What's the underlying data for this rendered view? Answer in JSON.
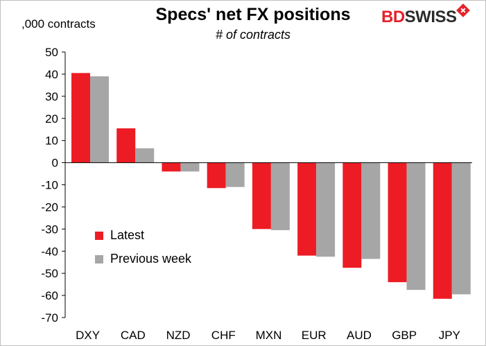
{
  "chart_data": {
    "type": "bar",
    "title": "Specs' net FX positions",
    "subtitle": "# of contracts",
    "ylabel": ",000 contracts",
    "ylim": [
      -70,
      50
    ],
    "yticks": [
      50,
      40,
      30,
      20,
      10,
      0,
      -10,
      -20,
      -30,
      -40,
      -50,
      -60,
      -70
    ],
    "categories": [
      "DXY",
      "CAD",
      "NZD",
      "CHF",
      "MXN",
      "EUR",
      "AUD",
      "GBP",
      "JPY"
    ],
    "series": [
      {
        "name": "Latest",
        "color": "#ed1c24",
        "values": [
          40.5,
          15.5,
          -4,
          -11.5,
          -30,
          -42,
          -47.5,
          -54,
          -61.5
        ]
      },
      {
        "name": "Previous week",
        "color": "#a6a6a6",
        "values": [
          39,
          6.5,
          -4,
          -11,
          -30.5,
          -42.5,
          -43.5,
          -57.5,
          -59.5
        ]
      }
    ],
    "legend_position": "bottom-left",
    "grid": false
  },
  "branding": {
    "logo_part1": "BD",
    "logo_part2": "SWISS"
  }
}
